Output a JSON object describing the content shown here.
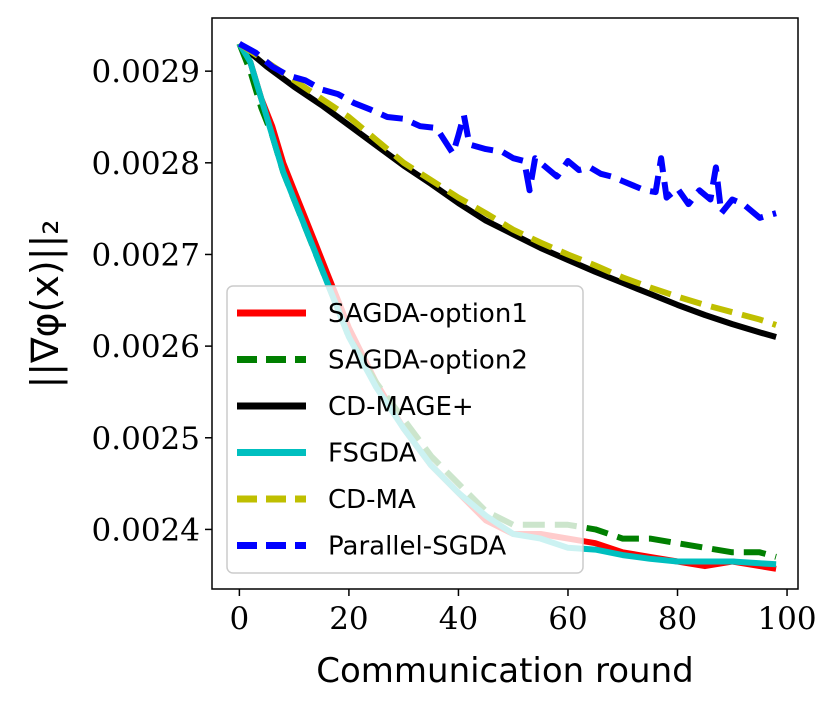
{
  "chart_data": {
    "type": "line",
    "title": "",
    "xlabel": "Communication round",
    "ylabel": "||∇φ(x)||₂",
    "xlim": [
      -5,
      102
    ],
    "ylim": [
      0.002335,
      0.002958
    ],
    "xticks": [
      0,
      20,
      40,
      60,
      80,
      100
    ],
    "xtick_labels": [
      "0",
      "20",
      "40",
      "60",
      "80",
      "100"
    ],
    "yticks": [
      0.0024,
      0.0025,
      0.0026,
      0.0027,
      0.0028,
      0.0029
    ],
    "ytick_labels": [
      "0.0024",
      "0.0025",
      "0.0026",
      "0.0027",
      "0.0028",
      "0.0029"
    ],
    "legend_position": "lower-left",
    "grid": false,
    "series": [
      {
        "name": "SAGDA-option1",
        "color": "#ff0000",
        "dash": "solid",
        "x": [
          0,
          2,
          4,
          6,
          8,
          10,
          12,
          14,
          16,
          18,
          20,
          25,
          30,
          35,
          40,
          45,
          50,
          55,
          60,
          65,
          70,
          75,
          80,
          85,
          90,
          95,
          98
        ],
        "y": [
          0.00293,
          0.00291,
          0.00287,
          0.00284,
          0.0028,
          0.00277,
          0.00274,
          0.00271,
          0.00268,
          0.00265,
          0.00262,
          0.00256,
          0.00251,
          0.00247,
          0.00244,
          0.00241,
          0.002395,
          0.002395,
          0.00239,
          0.002385,
          0.002375,
          0.00237,
          0.002365,
          0.00236,
          0.002365,
          0.00236,
          0.002357
        ]
      },
      {
        "name": "SAGDA-option2",
        "color": "#007f00",
        "dash": "dashed",
        "x": [
          0,
          2,
          4,
          6,
          8,
          10,
          12,
          14,
          16,
          18,
          20,
          25,
          30,
          35,
          40,
          45,
          50,
          55,
          60,
          65,
          70,
          75,
          80,
          85,
          90,
          95,
          98
        ],
        "y": [
          0.00293,
          0.0029,
          0.00286,
          0.00283,
          0.00279,
          0.00276,
          0.00273,
          0.0027,
          0.00267,
          0.00264,
          0.00261,
          0.00256,
          0.00252,
          0.00248,
          0.00245,
          0.00242,
          0.002405,
          0.002405,
          0.002405,
          0.0024,
          0.00239,
          0.00239,
          0.002385,
          0.00238,
          0.002375,
          0.002375,
          0.00237
        ]
      },
      {
        "name": "CD-MAGE+",
        "color": "#000000",
        "dash": "solid",
        "x": [
          0,
          5,
          10,
          15,
          20,
          25,
          30,
          35,
          40,
          45,
          50,
          55,
          60,
          65,
          70,
          75,
          80,
          85,
          90,
          95,
          98
        ],
        "y": [
          0.00293,
          0.002905,
          0.002883,
          0.002863,
          0.002841,
          0.002819,
          0.002797,
          0.002777,
          0.002756,
          0.002737,
          0.002722,
          0.002707,
          0.002694,
          0.002681,
          0.002669,
          0.002657,
          0.002645,
          0.002634,
          0.002624,
          0.002615,
          0.00261
        ]
      },
      {
        "name": "FSGDA",
        "color": "#00bfbf",
        "dash": "solid",
        "x": [
          0,
          2,
          4,
          6,
          8,
          10,
          12,
          14,
          16,
          18,
          20,
          25,
          30,
          35,
          40,
          45,
          50,
          55,
          60,
          65,
          70,
          75,
          80,
          85,
          90,
          95,
          98
        ],
        "y": [
          0.00293,
          0.00291,
          0.00287,
          0.00283,
          0.00279,
          0.00276,
          0.00273,
          0.0027,
          0.00267,
          0.00264,
          0.00261,
          0.002555,
          0.00251,
          0.00247,
          0.00244,
          0.002415,
          0.002395,
          0.00239,
          0.00238,
          0.002378,
          0.002372,
          0.002368,
          0.002365,
          0.002365,
          0.002365,
          0.002363,
          0.002362
        ]
      },
      {
        "name": "CD-MA",
        "color": "#bfbf00",
        "dash": "dashed",
        "x": [
          0,
          5,
          10,
          15,
          20,
          25,
          30,
          35,
          40,
          45,
          50,
          55,
          60,
          65,
          70,
          75,
          80,
          85,
          90,
          95,
          98
        ],
        "y": [
          0.00293,
          0.00291,
          0.00289,
          0.00287,
          0.00285,
          0.002825,
          0.0028,
          0.002781,
          0.002762,
          0.002745,
          0.002727,
          0.002713,
          0.0027,
          0.002688,
          0.002675,
          0.002664,
          0.002654,
          0.002645,
          0.002637,
          0.002629,
          0.002623
        ]
      },
      {
        "name": "Parallel-SGDA",
        "color": "#0000ff",
        "dash": "dashed",
        "x": [
          0,
          3,
          6,
          9,
          12,
          15,
          18,
          21,
          24,
          27,
          30,
          33,
          36,
          39,
          40,
          41,
          42,
          45,
          48,
          50,
          52,
          53,
          54,
          56,
          58,
          60,
          62,
          64,
          66,
          68,
          70,
          72,
          74,
          76,
          77,
          78,
          80,
          82,
          84,
          86,
          87,
          88,
          90,
          92,
          95,
          98
        ],
        "y": [
          0.00293,
          0.00292,
          0.002905,
          0.002895,
          0.00289,
          0.00288,
          0.002875,
          0.002865,
          0.002858,
          0.00285,
          0.002848,
          0.00284,
          0.002838,
          0.00281,
          0.00283,
          0.002852,
          0.00282,
          0.002815,
          0.002812,
          0.002805,
          0.002802,
          0.00277,
          0.002805,
          0.002795,
          0.002785,
          0.002802,
          0.002792,
          0.002795,
          0.002788,
          0.002785,
          0.00278,
          0.002775,
          0.00277,
          0.002768,
          0.002805,
          0.002762,
          0.002772,
          0.002755,
          0.00277,
          0.00276,
          0.002795,
          0.002745,
          0.00276,
          0.002755,
          0.00274,
          0.002745
        ]
      }
    ]
  }
}
